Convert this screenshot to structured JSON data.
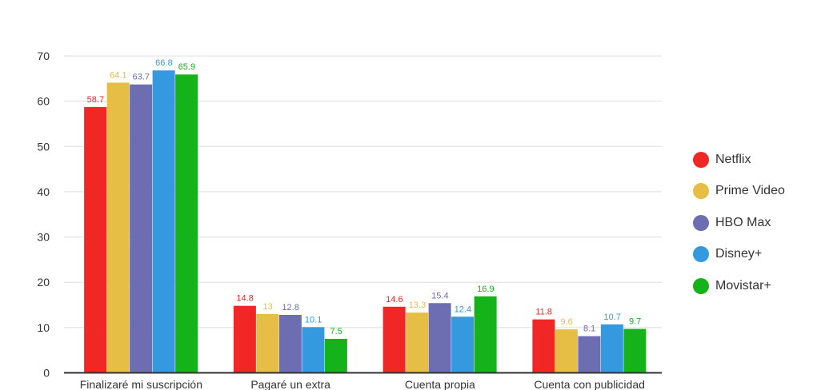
{
  "chart_data": {
    "type": "bar",
    "title": "",
    "xlabel": "",
    "ylabel": "",
    "ylim": [
      0,
      70
    ],
    "yticks": [
      0,
      10,
      20,
      30,
      40,
      50,
      60,
      70
    ],
    "grid": true,
    "legend_position": "right",
    "categories": [
      "Finalizaré mi suscripción",
      "Pagaré un extra",
      "Cuenta propia",
      "Cuenta con publicidad"
    ],
    "series": [
      {
        "name": "Netflix",
        "color": "#f12726",
        "values": [
          58.7,
          14.8,
          14.6,
          11.8
        ]
      },
      {
        "name": "Prime Video",
        "color": "#e6bd45",
        "values": [
          64.1,
          13,
          13.3,
          9.6
        ]
      },
      {
        "name": "HBO Max",
        "color": "#6d6db2",
        "values": [
          63.7,
          12.8,
          15.4,
          8.1
        ]
      },
      {
        "name": "Disney+",
        "color": "#3599e0",
        "values": [
          66.8,
          10.1,
          12.4,
          10.7
        ]
      },
      {
        "name": "Movistar+",
        "color": "#15b21a",
        "values": [
          65.9,
          7.5,
          16.9,
          9.7
        ]
      }
    ]
  }
}
